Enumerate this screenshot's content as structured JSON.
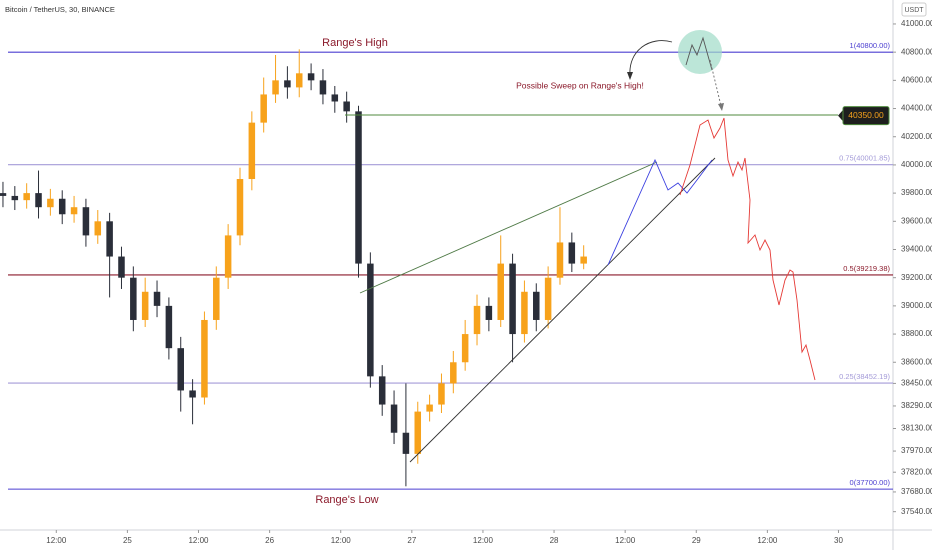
{
  "chart_data": {
    "type": "candlestick",
    "title": "Bitcoin / TetherUS, 30, BINANCE",
    "currency": "USDT",
    "up_color": "#f7a21b",
    "down_color": "#2a2e39",
    "x": [
      3,
      5,
      7,
      9,
      11,
      13,
      15,
      17,
      19,
      21,
      23,
      25,
      27,
      29,
      31,
      33,
      35,
      37,
      39,
      41,
      43,
      45,
      47,
      49,
      51,
      53,
      55,
      57,
      59,
      61,
      63,
      65,
      67,
      69,
      71,
      73,
      75,
      77,
      79,
      81,
      83,
      85,
      87,
      89,
      91,
      93,
      95,
      97,
      99,
      101
    ],
    "open": [
      39800,
      39780,
      39750,
      39800,
      39700,
      39760,
      39650,
      39700,
      39500,
      39600,
      39350,
      39200,
      38900,
      39100,
      39000,
      38700,
      38400,
      38350,
      38900,
      39200,
      39500,
      39900,
      40300,
      40500,
      40600,
      40550,
      40650,
      40600,
      40500,
      40450,
      40380,
      39300,
      38500,
      38300,
      38100,
      37950,
      38250,
      38300,
      38450,
      38600,
      38800,
      39000,
      38900,
      39300,
      38800,
      39100,
      38900,
      39200,
      39450,
      39300
    ],
    "high": [
      39880,
      39850,
      39870,
      39960,
      39830,
      39820,
      39780,
      39760,
      39680,
      39660,
      39420,
      39280,
      39200,
      39180,
      39060,
      38780,
      38480,
      38960,
      39280,
      39580,
      39980,
      40380,
      40620,
      40780,
      40700,
      40820,
      40720,
      40680,
      40560,
      40520,
      40420,
      39380,
      38580,
      38400,
      38450,
      38320,
      38370,
      38520,
      38680,
      38900,
      39080,
      39060,
      39500,
      39370,
      39180,
      39160,
      39280,
      39700,
      39520,
      39430
    ],
    "low": [
      39700,
      39680,
      39690,
      39620,
      39640,
      39580,
      39590,
      39420,
      39440,
      39060,
      39120,
      38820,
      38850,
      38920,
      38620,
      38250,
      38160,
      38300,
      38830,
      39120,
      39430,
      39820,
      40230,
      40440,
      40470,
      40480,
      40530,
      40430,
      40370,
      40300,
      39200,
      38420,
      38220,
      38020,
      37720,
      37880,
      38180,
      38240,
      38380,
      38540,
      38720,
      38820,
      38850,
      38600,
      38740,
      38820,
      38840,
      39150,
      39240,
      39260
    ],
    "close": [
      39780,
      39750,
      39800,
      39700,
      39760,
      39650,
      39700,
      39500,
      39600,
      39350,
      39200,
      38900,
      39100,
      39000,
      38700,
      38400,
      38350,
      38900,
      39200,
      39500,
      39900,
      40300,
      40500,
      40600,
      40550,
      40650,
      40600,
      40500,
      40450,
      40380,
      39300,
      38500,
      38300,
      38100,
      37950,
      38250,
      38300,
      38450,
      38600,
      38800,
      39000,
      38900,
      39300,
      38800,
      39100,
      38900,
      39200,
      39450,
      39300,
      39350
    ],
    "xlim": [
      2.5,
      153.2
    ],
    "xticks": [
      {
        "value": 12,
        "label": "12:00"
      },
      {
        "value": 24,
        "label": "25"
      },
      {
        "value": 36,
        "label": "12:00"
      },
      {
        "value": 48,
        "label": "26"
      },
      {
        "value": 60,
        "label": "12:00"
      },
      {
        "value": 72,
        "label": "27"
      },
      {
        "value": 84,
        "label": "12:00"
      },
      {
        "value": 96,
        "label": "28"
      },
      {
        "value": 108,
        "label": "12:00"
      },
      {
        "value": 120,
        "label": "29"
      },
      {
        "value": 132,
        "label": "12:00"
      },
      {
        "value": 144,
        "label": "30"
      }
    ],
    "ylim": [
      37410,
      41170
    ],
    "yticks": [
      {
        "value": 41000,
        "label": "41000.00"
      },
      {
        "value": 40800,
        "label": "40800.00"
      },
      {
        "value": 40600,
        "label": "40600.00"
      },
      {
        "value": 40400,
        "label": "40400.00"
      },
      {
        "value": 40200,
        "label": "40200.00"
      },
      {
        "value": 40000,
        "label": "40000.00"
      },
      {
        "value": 39800,
        "label": "39800.00"
      },
      {
        "value": 39600,
        "label": "39600.00"
      },
      {
        "value": 39400,
        "label": "39400.00"
      },
      {
        "value": 39200,
        "label": "39200.00"
      },
      {
        "value": 39000,
        "label": "39000.00"
      },
      {
        "value": 38800,
        "label": "38800.00"
      },
      {
        "value": 38600,
        "label": "38600.00"
      },
      {
        "value": 38450,
        "label": "38450.00"
      },
      {
        "value": 38290,
        "label": "38290.00"
      },
      {
        "value": 38130,
        "label": "38130.00"
      },
      {
        "value": 37970,
        "label": "37970.00"
      },
      {
        "value": 37820,
        "label": "37820.00"
      },
      {
        "value": 37680,
        "label": "37680.00"
      },
      {
        "value": 37540,
        "label": "37540.00"
      }
    ],
    "fib_levels": [
      {
        "value": 40800,
        "label": "1(40800.00)",
        "color": "#4b3fd0"
      },
      {
        "value": 40001.85,
        "label": "0.75(40001.85)",
        "color": "#a49bd8"
      },
      {
        "value": 39219.38,
        "label": "0.5(39219.38)",
        "color": "#8b1a2b"
      },
      {
        "value": 38452.19,
        "label": "0.25(38452.19)",
        "color": "#a49bd8"
      },
      {
        "value": 37700,
        "label": "0(37700.00)",
        "color": "#4b3fd0"
      }
    ],
    "price_label": {
      "value": 40350,
      "label": "40350.00",
      "color": "#4f8a3c"
    },
    "annotations": {
      "range_high": "Range's High",
      "range_low": "Range's Low",
      "sweep": "Possible Sweep on Range's High!"
    }
  }
}
